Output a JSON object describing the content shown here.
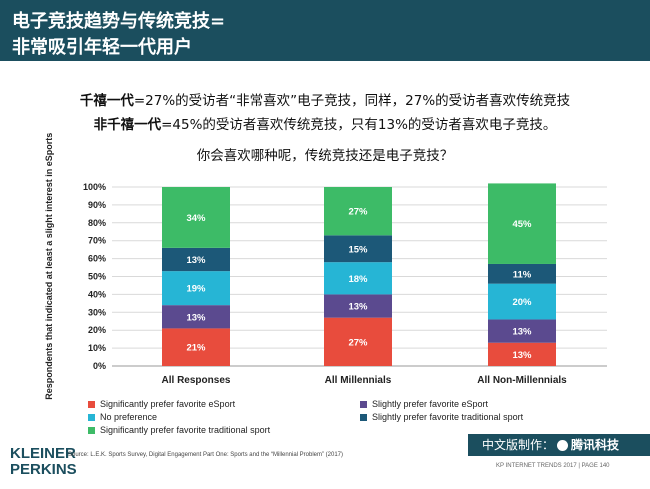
{
  "header": {
    "title_line1": "电子竞技趋势与传统竞技=",
    "title_line2": "非常吸引年轻一代用户"
  },
  "subtitle": {
    "line1_bold": "千禧一代",
    "line1_rest": "=27%的受访者“非常喜欢”电子竞技，同样，27%的受访者喜欢传统竞技",
    "line2_bold": "非千禧一代",
    "line2_rest": "=45%的受访者喜欢传统竞技，只有13%的受访者喜欢电子竞技。"
  },
  "question": "你会喜欢哪种呢，传统竞技还是电子竞技？",
  "chart_data": {
    "type": "bar",
    "stacked": true,
    "categories": [
      "All Responses",
      "All Millennials",
      "All Non-Millennials"
    ],
    "ylabel": "% of Respondents that indicated at least a slight interest in eSports",
    "ylim": [
      0,
      100
    ],
    "yticks": [
      "0%",
      "10%",
      "20%",
      "30%",
      "40%",
      "50%",
      "60%",
      "70%",
      "80%",
      "90%",
      "100%"
    ],
    "grid": true,
    "legend_position": "bottom",
    "series": [
      {
        "name": "Significantly prefer favorite eSport",
        "color": "#e84c3d",
        "values": [
          21,
          27,
          13
        ],
        "labels": [
          "21%",
          "27%",
          "13%"
        ]
      },
      {
        "name": "Slightly prefer favorite eSport",
        "color": "#5b4a8f",
        "values": [
          13,
          13,
          13
        ],
        "labels": [
          "13%",
          "13%",
          "13%"
        ]
      },
      {
        "name": "No preference",
        "color": "#26b5d5",
        "values": [
          19,
          18,
          20
        ],
        "labels": [
          "19%",
          "18%",
          "20%"
        ]
      },
      {
        "name": "Slightly prefer favorite traditional sport",
        "color": "#1c5878",
        "values": [
          13,
          15,
          11
        ],
        "labels": [
          "13%",
          "15%",
          "11%"
        ]
      },
      {
        "name": "Significantly prefer favorite traditional sport",
        "color": "#3dbb67",
        "values": [
          34,
          27,
          45
        ],
        "labels": [
          "34%",
          "27%",
          "45%"
        ]
      }
    ]
  },
  "footer": {
    "logo_line1": "KLEINER",
    "logo_line2": "PERKINS",
    "source": "Source: L.E.K. Sports Survey, Digital Engagement Part One: Sports and the “Millennial Problem” (2017)",
    "credit_prefix": "中文版制作：",
    "credit_brand": "腾讯科技",
    "report": "KP INTERNET TRENDS 2017  |  PAGE 140"
  }
}
